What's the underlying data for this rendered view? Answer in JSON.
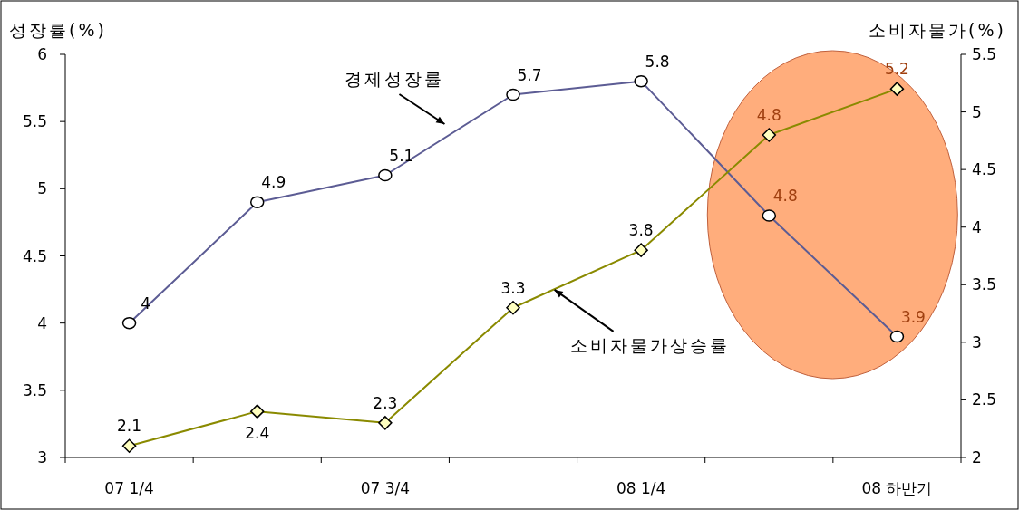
{
  "chart_data": {
    "type": "line",
    "ylabel": "성장률(%)",
    "y2label": "소비자물가(%)",
    "categories": [
      "07 1/4",
      null,
      "07 3/4",
      null,
      "08 1/4",
      null,
      "08 하반기"
    ],
    "ylim": [
      3,
      6
    ],
    "yticks": [
      3,
      3.5,
      4,
      4.5,
      5,
      5.5,
      6
    ],
    "y2lim": [
      2,
      5.5
    ],
    "y2ticks": [
      2,
      2.5,
      3,
      3.5,
      4,
      4.5,
      5,
      5.5
    ],
    "series": [
      {
        "name": "경제성장률",
        "color": "#5c5c94",
        "marker": "circle",
        "values": [
          4,
          4.9,
          5.1,
          5.7,
          5.8,
          4.8,
          3.9
        ]
      },
      {
        "name": "소비자물가상승률",
        "color": "#8a8a00",
        "marker": "diamond",
        "axis": "y2",
        "values": [
          2.1,
          2.4,
          2.3,
          3.3,
          3.8,
          4.8,
          5.2
        ]
      }
    ],
    "data_labels": true
  }
}
